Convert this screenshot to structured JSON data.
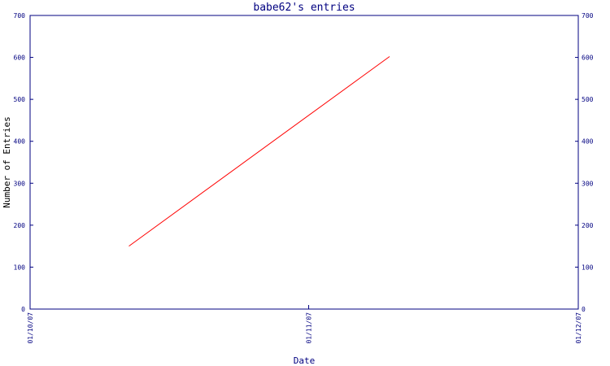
{
  "chart_data": {
    "type": "line",
    "title": "babe62's entries",
    "xlabel": "Date",
    "ylabel": "Number of Entries",
    "x_ticks": [
      "01/10/07",
      "01/11/07",
      "01/12/07"
    ],
    "x_range": [
      "01/10/07",
      "01/12/07"
    ],
    "y_ticks": [
      0,
      100,
      200,
      300,
      400,
      500,
      600,
      700
    ],
    "ylim": [
      0,
      700
    ],
    "right_axis": true,
    "grid": false,
    "series": [
      {
        "x": [
          "2007-10-12",
          "2007-11-10"
        ],
        "values": [
          150,
          602
        ]
      }
    ],
    "colors": {
      "axis": "#000080",
      "line": "#ff0000",
      "text": "#000080"
    }
  }
}
